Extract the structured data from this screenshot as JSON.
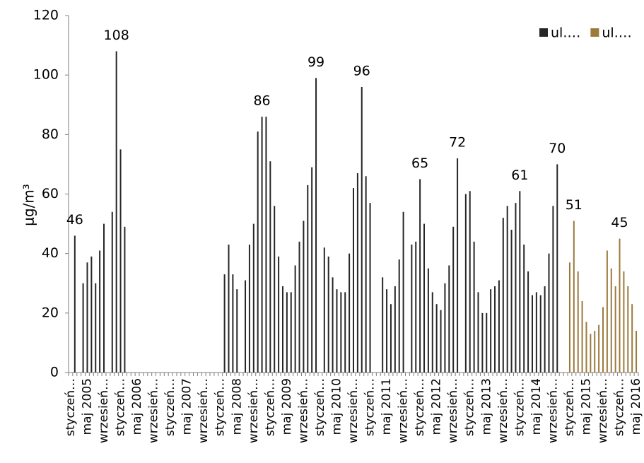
{
  "chart_data": {
    "type": "bar",
    "y_label": "μg/m³",
    "categories": [
      "styczeń…",
      null,
      null,
      null,
      "maj 2005",
      null,
      null,
      null,
      "wrzesień…",
      null,
      null,
      null,
      "styczeń…",
      null,
      null,
      null,
      "maj 2006",
      null,
      null,
      null,
      "wrzesień…",
      null,
      null,
      null,
      "styczeń…",
      null,
      null,
      null,
      "maj 2007",
      null,
      null,
      null,
      "wrzesień…",
      null,
      null,
      null,
      "styczeń…",
      null,
      null,
      null,
      "maj 2008",
      null,
      null,
      null,
      "wrzesień…",
      null,
      null,
      null,
      "styczeń…",
      null,
      null,
      null,
      "maj 2009",
      null,
      null,
      null,
      "wrzesień…",
      null,
      null,
      null,
      "styczeń…",
      null,
      null,
      null,
      "maj 2010",
      null,
      null,
      null,
      "wrzesień…",
      null,
      null,
      null,
      "styczeń…",
      null,
      null,
      null,
      "maj 2011",
      null,
      null,
      null,
      "wrzesień…",
      null,
      null,
      null,
      "styczeń…",
      null,
      null,
      null,
      "maj 2012",
      null,
      null,
      null,
      "wrzesień…",
      null,
      null,
      null,
      "styczeń…",
      null,
      null,
      null,
      "maj 2013",
      null,
      null,
      null,
      "wrzesień…",
      null,
      null,
      null,
      "styczeń…",
      null,
      null,
      null,
      "maj 2014",
      null,
      null,
      null,
      "wrzesień…",
      null,
      null,
      null,
      "styczeń…",
      null,
      null,
      null,
      "maj 2015",
      null,
      null,
      null,
      "wrzesień…",
      null,
      null,
      null,
      "styczeń…",
      null,
      null,
      null,
      "maj 2016"
    ],
    "series": [
      {
        "name": "ul.…",
        "color": "#262626",
        "values": [
          null,
          46,
          null,
          30,
          37,
          39,
          30,
          41,
          50,
          null,
          54,
          108,
          75,
          49,
          null,
          null,
          null,
          null,
          null,
          null,
          null,
          null,
          null,
          null,
          null,
          null,
          null,
          null,
          null,
          null,
          null,
          null,
          null,
          null,
          null,
          null,
          null,
          33,
          43,
          33,
          28,
          null,
          31,
          43,
          50,
          81,
          86,
          86,
          71,
          56,
          39,
          29,
          27,
          27,
          36,
          44,
          51,
          63,
          69,
          99,
          null,
          42,
          39,
          32,
          28,
          27,
          27,
          40,
          62,
          67,
          96,
          66,
          57,
          null,
          null,
          32,
          28,
          23,
          29,
          38,
          54,
          null,
          43,
          44,
          65,
          50,
          35,
          27,
          23,
          21,
          30,
          36,
          49,
          72,
          null,
          60,
          61,
          44,
          27,
          20,
          20,
          28,
          29,
          31,
          52,
          56,
          48,
          57,
          61,
          43,
          34,
          26,
          27,
          26,
          29,
          40,
          56,
          70,
          null,
          null,
          null,
          null,
          null,
          null,
          null,
          null,
          null,
          null,
          null,
          null,
          null,
          null,
          null,
          null,
          null,
          null,
          null
        ],
        "value_labels": [
          null,
          "46",
          null,
          null,
          null,
          null,
          null,
          null,
          null,
          null,
          null,
          "108",
          null,
          null,
          null,
          null,
          null,
          null,
          null,
          null,
          null,
          null,
          null,
          null,
          null,
          null,
          null,
          null,
          null,
          null,
          null,
          null,
          null,
          null,
          null,
          null,
          null,
          null,
          null,
          null,
          null,
          null,
          null,
          null,
          null,
          null,
          "86",
          null,
          null,
          null,
          null,
          null,
          null,
          null,
          null,
          null,
          null,
          null,
          null,
          "99",
          null,
          null,
          null,
          null,
          null,
          null,
          null,
          null,
          null,
          null,
          "96",
          null,
          null,
          null,
          null,
          null,
          null,
          null,
          null,
          null,
          null,
          null,
          null,
          null,
          "65",
          null,
          null,
          null,
          null,
          null,
          null,
          null,
          null,
          "72",
          null,
          null,
          null,
          null,
          null,
          null,
          null,
          null,
          null,
          null,
          null,
          null,
          null,
          null,
          "61",
          null,
          null,
          null,
          null,
          null,
          null,
          null,
          null,
          "70",
          null,
          null,
          null,
          null,
          null,
          null,
          null,
          null,
          null,
          null,
          null,
          null,
          null,
          null,
          null,
          null,
          null,
          null,
          null
        ]
      },
      {
        "name": "ul.…",
        "color": "#9c7a3c",
        "values": [
          null,
          null,
          null,
          null,
          null,
          null,
          null,
          null,
          null,
          null,
          null,
          null,
          null,
          null,
          null,
          null,
          null,
          null,
          null,
          null,
          null,
          null,
          null,
          null,
          null,
          null,
          null,
          null,
          null,
          null,
          null,
          null,
          null,
          null,
          null,
          null,
          null,
          null,
          null,
          null,
          null,
          null,
          null,
          null,
          null,
          null,
          null,
          null,
          null,
          null,
          null,
          null,
          null,
          null,
          null,
          null,
          null,
          null,
          null,
          null,
          null,
          null,
          null,
          null,
          null,
          null,
          null,
          null,
          null,
          null,
          null,
          null,
          null,
          null,
          null,
          null,
          null,
          null,
          null,
          null,
          null,
          null,
          null,
          null,
          null,
          null,
          null,
          null,
          null,
          null,
          null,
          null,
          null,
          null,
          null,
          null,
          null,
          null,
          null,
          null,
          null,
          null,
          null,
          null,
          null,
          null,
          null,
          null,
          null,
          null,
          null,
          null,
          null,
          null,
          null,
          null,
          null,
          null,
          null,
          null,
          37,
          51,
          34,
          24,
          17,
          13,
          14,
          16,
          22,
          41,
          35,
          29,
          45,
          34,
          29,
          23,
          14
        ],
        "value_labels": [
          null,
          null,
          null,
          null,
          null,
          null,
          null,
          null,
          null,
          null,
          null,
          null,
          null,
          null,
          null,
          null,
          null,
          null,
          null,
          null,
          null,
          null,
          null,
          null,
          null,
          null,
          null,
          null,
          null,
          null,
          null,
          null,
          null,
          null,
          null,
          null,
          null,
          null,
          null,
          null,
          null,
          null,
          null,
          null,
          null,
          null,
          null,
          null,
          null,
          null,
          null,
          null,
          null,
          null,
          null,
          null,
          null,
          null,
          null,
          null,
          null,
          null,
          null,
          null,
          null,
          null,
          null,
          null,
          null,
          null,
          null,
          null,
          null,
          null,
          null,
          null,
          null,
          null,
          null,
          null,
          null,
          null,
          null,
          null,
          null,
          null,
          null,
          null,
          null,
          null,
          null,
          null,
          null,
          null,
          null,
          null,
          null,
          null,
          null,
          null,
          null,
          null,
          null,
          null,
          null,
          null,
          null,
          null,
          null,
          null,
          null,
          null,
          null,
          null,
          null,
          null,
          null,
          null,
          null,
          null,
          null,
          "51",
          null,
          null,
          null,
          null,
          null,
          null,
          null,
          null,
          null,
          null,
          "45",
          null,
          null,
          null,
          null
        ]
      }
    ],
    "ylim": [
      0,
      120
    ],
    "yticks": [
      0,
      20,
      40,
      60,
      80,
      100,
      120
    ],
    "grid": false,
    "legend": "top-right"
  }
}
